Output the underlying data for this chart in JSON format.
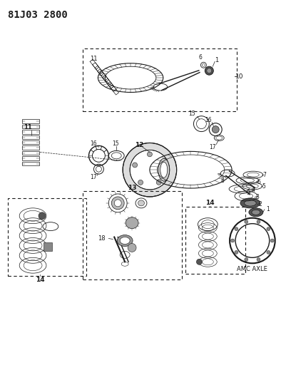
{
  "title": "81J03 2800",
  "bg_color": "#ffffff",
  "line_color": "#1a1a1a",
  "title_fontsize": 10,
  "figsize": [
    3.94,
    5.33
  ],
  "dpi": 100,
  "amc_axle_label": "AMC AXLE"
}
